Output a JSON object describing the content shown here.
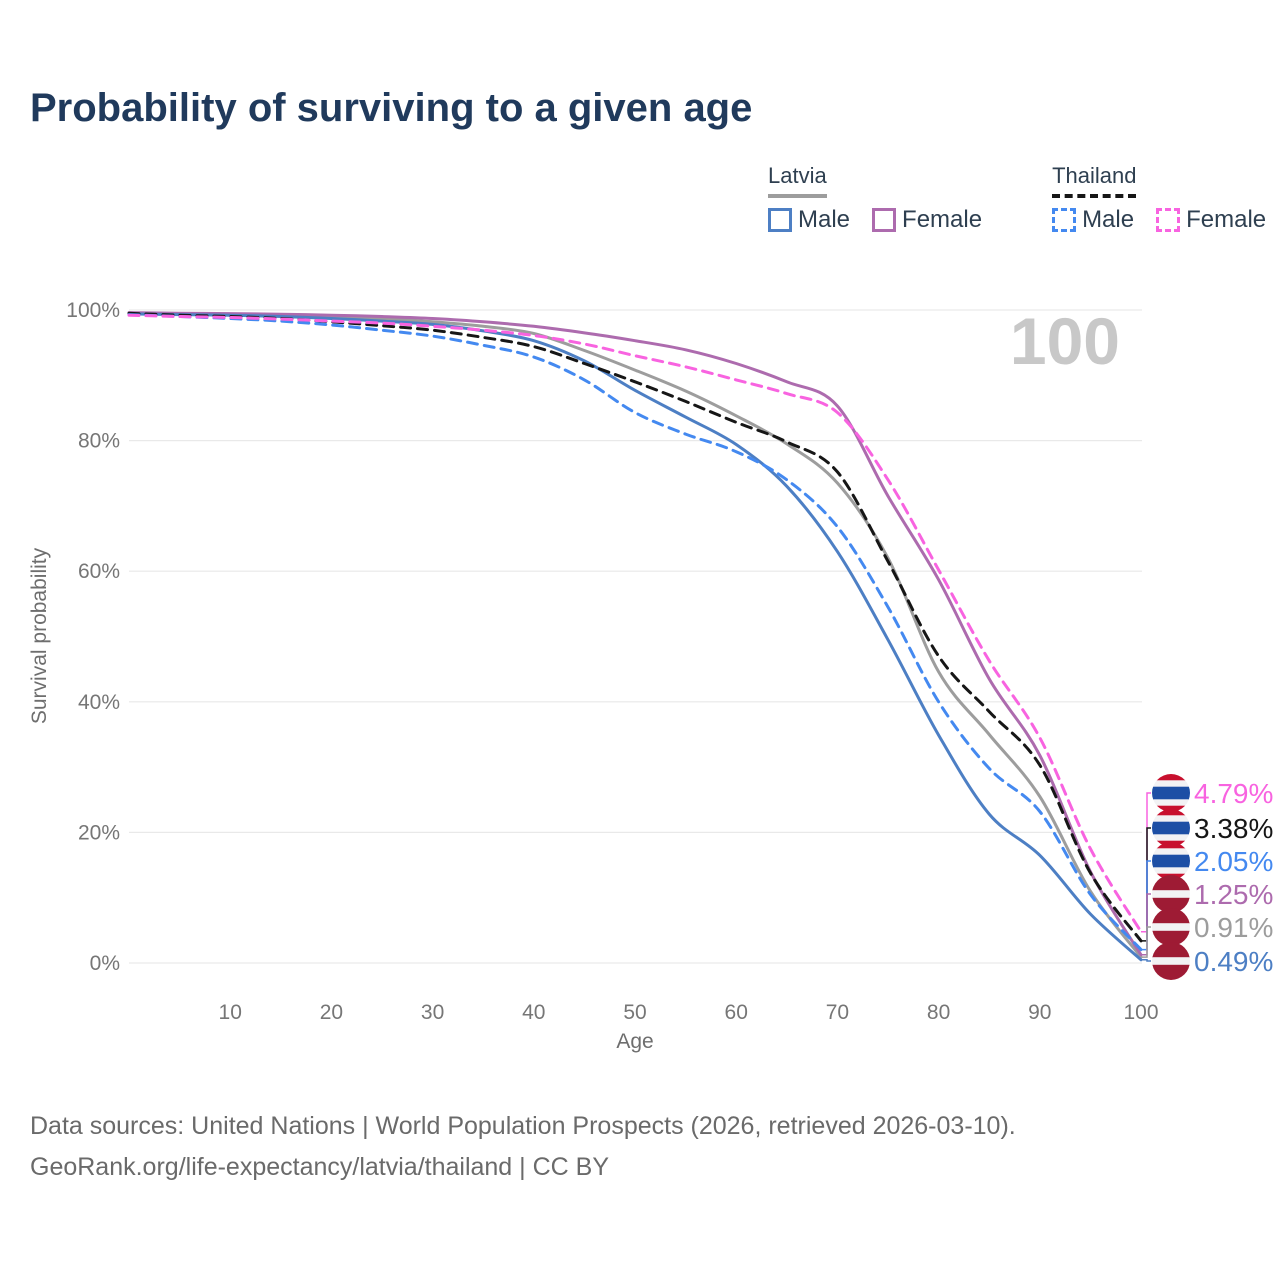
{
  "title": "Probability of surviving to a given age",
  "watermark": "100",
  "legend": {
    "groups": [
      {
        "country": "Latvia",
        "items": [
          {
            "label": "Male"
          },
          {
            "label": "Female"
          }
        ]
      },
      {
        "country": "Thailand",
        "items": [
          {
            "label": "Male"
          },
          {
            "label": "Female"
          }
        ]
      }
    ]
  },
  "colors": {
    "grid": "#e9e9e9",
    "tick_text": "#767676",
    "title_text": "#203a5c",
    "watermark_text": "#c8c8c8",
    "footer_text": "#6a6a6a",
    "legend_text": "#2e3f50",
    "latvia_underline": "#9d9d9d",
    "thailand_underline": "#161616"
  },
  "flags": {
    "colors": {
      "th_red": "#c8102e",
      "th_blue": "#1d4fa5",
      "lv_red": "#9e1b34",
      "white": "#f2f2f4"
    },
    "thailand": [
      [
        "th_red",
        0.1667
      ],
      [
        "white",
        0.1667
      ],
      [
        "th_blue",
        0.3332
      ],
      [
        "white",
        0.1667
      ],
      [
        "th_red",
        0.1667
      ]
    ],
    "latvia": [
      [
        "lv_red",
        0.4
      ],
      [
        "white",
        0.2
      ],
      [
        "lv_red",
        0.4
      ]
    ]
  },
  "chart_data": {
    "type": "line",
    "xlabel": "Age",
    "ylabel": "Survival probability",
    "xlim": [
      0,
      100
    ],
    "ylim": [
      0,
      100
    ],
    "grid": "horizontal",
    "legend_position": "top-right",
    "x": [
      0,
      5,
      10,
      15,
      20,
      25,
      30,
      35,
      40,
      45,
      50,
      55,
      60,
      65,
      70,
      75,
      80,
      85,
      90,
      95,
      100
    ],
    "x_ticks": [
      10,
      20,
      30,
      40,
      50,
      60,
      70,
      80,
      90,
      100
    ],
    "y_ticks": [
      {
        "value": 100,
        "label": "100%"
      },
      {
        "value": 80,
        "label": "80%"
      },
      {
        "value": 60,
        "label": "60%"
      },
      {
        "value": 40,
        "label": "40%"
      },
      {
        "value": 20,
        "label": "20%"
      },
      {
        "value": 0,
        "label": "0%"
      }
    ],
    "series": [
      {
        "id": "latvia_total",
        "country": "Latvia",
        "sex": "Total",
        "color": "#9d9d9d",
        "dash": false,
        "end_label": "0.91%",
        "flag": "latvia",
        "values": [
          99.5,
          99.4,
          99.3,
          99.2,
          99.0,
          98.7,
          98.2,
          97.5,
          96.4,
          93.8,
          90.8,
          87.6,
          83.8,
          79.5,
          73.5,
          62.0,
          44.6,
          35.0,
          25.5,
          11.0,
          0.91
        ]
      },
      {
        "id": "latvia_female",
        "country": "Latvia",
        "sex": "Female",
        "color": "#ad6bae",
        "dash": false,
        "end_label": "1.25%",
        "flag": "latvia",
        "values": [
          99.6,
          99.5,
          99.45,
          99.35,
          99.2,
          99.0,
          98.7,
          98.2,
          97.5,
          96.5,
          95.3,
          93.9,
          91.8,
          89.0,
          85.3,
          71.5,
          58.7,
          43.5,
          31.8,
          14.0,
          1.25
        ]
      },
      {
        "id": "latvia_male",
        "country": "Latvia",
        "sex": "Male",
        "color": "#4d7fc4",
        "dash": false,
        "end_label": "0.49%",
        "flag": "latvia",
        "values": [
          99.4,
          99.3,
          99.2,
          99.0,
          98.7,
          98.3,
          97.8,
          96.8,
          95.3,
          92.2,
          87.7,
          83.6,
          79.4,
          73.0,
          63.0,
          49.5,
          34.9,
          22.8,
          16.5,
          7.5,
          0.49
        ]
      },
      {
        "id": "thailand_total",
        "country": "Thailand",
        "sex": "Total",
        "color": "#161616",
        "dash": true,
        "end_label": "3.38%",
        "flag": "thailand",
        "values": [
          99.5,
          99.2,
          99.0,
          98.7,
          98.2,
          97.6,
          96.9,
          95.8,
          94.4,
          91.8,
          89.0,
          86.0,
          82.8,
          79.8,
          75.2,
          61.5,
          47.0,
          38.5,
          30.3,
          13.8,
          3.38
        ]
      },
      {
        "id": "thailand_male",
        "country": "Thailand",
        "sex": "Male",
        "color": "#4489f0",
        "dash": true,
        "end_label": "2.05%",
        "flag": "thailand",
        "values": [
          99.3,
          99.0,
          98.7,
          98.3,
          97.7,
          96.9,
          96.0,
          94.6,
          92.8,
          89.3,
          84.3,
          81.0,
          78.3,
          74.0,
          66.8,
          54.5,
          40.0,
          29.8,
          23.2,
          10.5,
          2.05
        ]
      },
      {
        "id": "thailand_female",
        "country": "Thailand",
        "sex": "Female",
        "color": "#f863e0",
        "dash": true,
        "end_label": "4.79%",
        "flag": "thailand",
        "values": [
          99.2,
          99.0,
          98.85,
          98.6,
          98.3,
          98.0,
          97.5,
          96.9,
          96.1,
          94.8,
          93.0,
          91.3,
          89.3,
          87.2,
          84.3,
          74.0,
          60.2,
          46.3,
          34.5,
          17.5,
          4.79
        ]
      }
    ]
  },
  "footer": {
    "line1": "Data sources: United Nations | World Population Prospects (2026, retrieved 2026-03-10).",
    "line2": "GeoRank.org/life-expectancy/latvia/thailand | CC BY"
  }
}
